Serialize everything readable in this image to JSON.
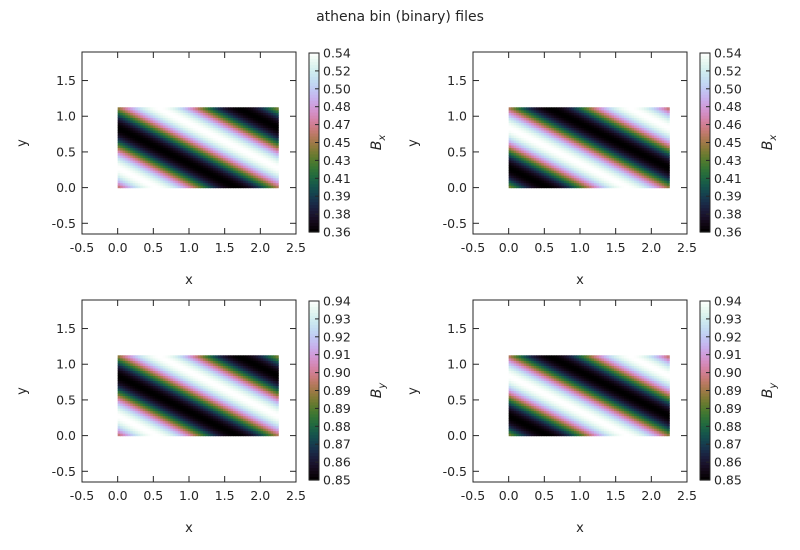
{
  "figure_title": "athena bin (binary) files",
  "chart_data": [
    {
      "type": "heatmap",
      "field": "Bx",
      "colorbar_label": "B_x",
      "colormap": "cubehelix",
      "xlabel": "x",
      "ylabel": "y",
      "xlim": [
        -0.5,
        2.5
      ],
      "ylim": [
        -0.65,
        1.9
      ],
      "xticks": [
        "-0.5",
        "0.0",
        "0.5",
        "1.0",
        "1.5",
        "2.0",
        "2.5"
      ],
      "yticks": [
        "-0.5",
        "0.0",
        "0.5",
        "1.0",
        "1.5"
      ],
      "data_extent": {
        "x": [
          0.0,
          2.25
        ],
        "y": [
          0.0,
          1.125
        ]
      },
      "vmin": 0.36,
      "vmax": 0.54,
      "colorbar_ticks": [
        "0.36",
        "0.38",
        "0.39",
        "0.41",
        "0.43",
        "0.45",
        "0.47",
        "0.48",
        "0.50",
        "0.52",
        "0.54"
      ],
      "phase": 0.0
    },
    {
      "type": "heatmap",
      "field": "Bx",
      "colorbar_label": "B_x",
      "colormap": "cubehelix",
      "xlabel": "x",
      "ylabel": "y",
      "xlim": [
        -0.5,
        2.5
      ],
      "ylim": [
        -0.65,
        1.9
      ],
      "xticks": [
        "-0.5",
        "0.0",
        "0.5",
        "1.0",
        "1.5",
        "2.0",
        "2.5"
      ],
      "yticks": [
        "-0.5",
        "0.0",
        "0.5",
        "1.0",
        "1.5"
      ],
      "data_extent": {
        "x": [
          0.0,
          2.25
        ],
        "y": [
          0.0,
          1.125
        ]
      },
      "vmin": 0.36,
      "vmax": 0.54,
      "colorbar_ticks": [
        "0.36",
        "0.38",
        "0.39",
        "0.41",
        "0.43",
        "0.45",
        "0.46",
        "0.48",
        "0.50",
        "0.52",
        "0.54"
      ],
      "phase": 3.14159
    },
    {
      "type": "heatmap",
      "field": "By",
      "colorbar_label": "B_y",
      "colormap": "cubehelix",
      "xlabel": "x",
      "ylabel": "y",
      "xlim": [
        -0.5,
        2.5
      ],
      "ylim": [
        -0.65,
        1.9
      ],
      "xticks": [
        "-0.5",
        "0.0",
        "0.5",
        "1.0",
        "1.5",
        "2.0",
        "2.5"
      ],
      "yticks": [
        "-0.5",
        "0.0",
        "0.5",
        "1.0",
        "1.5"
      ],
      "data_extent": {
        "x": [
          0.0,
          2.25
        ],
        "y": [
          0.0,
          1.125
        ]
      },
      "vmin": 0.85,
      "vmax": 0.94,
      "colorbar_ticks": [
        "0.85",
        "0.86",
        "0.87",
        "0.88",
        "0.89",
        "0.89",
        "0.90",
        "0.91",
        "0.92",
        "0.93",
        "0.94"
      ],
      "phase": 0.0
    },
    {
      "type": "heatmap",
      "field": "By",
      "colorbar_label": "B_y",
      "colormap": "cubehelix",
      "xlabel": "x",
      "ylabel": "y",
      "xlim": [
        -0.5,
        2.5
      ],
      "ylim": [
        -0.65,
        1.9
      ],
      "xticks": [
        "-0.5",
        "0.0",
        "0.5",
        "1.0",
        "1.5",
        "2.0",
        "2.5"
      ],
      "yticks": [
        "-0.5",
        "0.0",
        "0.5",
        "1.0",
        "1.5"
      ],
      "data_extent": {
        "x": [
          0.0,
          2.25
        ],
        "y": [
          0.0,
          1.125
        ]
      },
      "vmin": 0.85,
      "vmax": 0.94,
      "colorbar_ticks": [
        "0.85",
        "0.86",
        "0.87",
        "0.88",
        "0.89",
        "0.89",
        "0.90",
        "0.91",
        "0.92",
        "0.93",
        "0.94"
      ],
      "phase": 3.14159
    }
  ]
}
